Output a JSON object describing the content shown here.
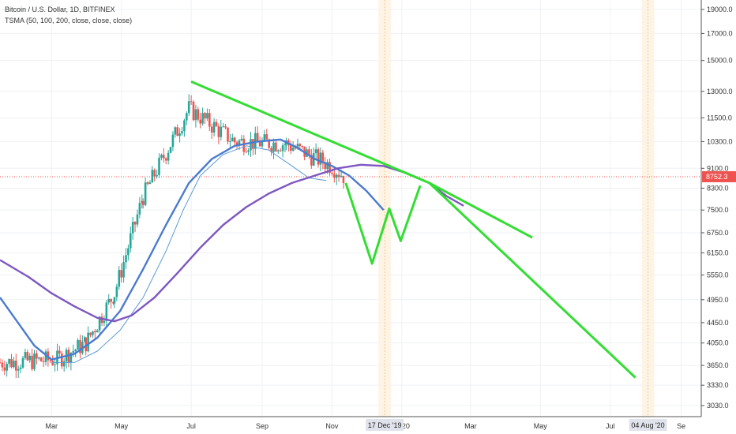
{
  "header": {
    "symbol_line": "Bitcoin / U.S. Dollar, 1D, BITFINEX",
    "indicator_line": "TSMA (50, 100, 200, close, close, close)"
  },
  "chart_data": {
    "type": "candlestick",
    "title": "Bitcoin / U.S. Dollar, 1D, BITFINEX",
    "indicator": "TSMA (50, 100, 200, close, close, close)",
    "y_scale": "log",
    "ylim": [
      2900,
      20000
    ],
    "price_ticks": [
      "19000.0",
      "17000.0",
      "15000.0",
      "13000.0",
      "11500.0",
      "10300.0",
      "9100.0",
      "8300.0",
      "7500.0",
      "6750.0",
      "6150.0",
      "5550.0",
      "4950.0",
      "4450.0",
      "4050.0",
      "3650.0",
      "3330.0",
      "3030.0"
    ],
    "current_price": "8752.3",
    "current_price_value": 8752.3,
    "x_ticks": [
      "Mar",
      "May",
      "Jul",
      "Sep",
      "Nov",
      "2020",
      "Mar",
      "May",
      "Jul",
      "Se"
    ],
    "x_tick_days": [
      0,
      61,
      122,
      184,
      245,
      306,
      366,
      427,
      488,
      550
    ],
    "highlight_labels": [
      {
        "label": "17 Dec '19",
        "day": 291
      },
      {
        "label": "04 Aug '20",
        "day": 521
      }
    ],
    "x_domain_days": [
      -45,
      562
    ],
    "candles_ohlc_by_segment": [
      {
        "from_day": -45,
        "to_day": 5,
        "open": 3700,
        "close": 3750,
        "high": 3850,
        "low": 3450
      },
      {
        "from_day": 5,
        "to_day": 30,
        "open": 3750,
        "close": 4050,
        "high": 4200,
        "low": 3700
      },
      {
        "from_day": 30,
        "to_day": 55,
        "open": 4050,
        "close": 5100,
        "high": 5300,
        "low": 4000
      },
      {
        "from_day": 55,
        "to_day": 80,
        "open": 5100,
        "close": 8000,
        "high": 8400,
        "low": 5000
      },
      {
        "from_day": 80,
        "to_day": 120,
        "open": 8000,
        "close": 12000,
        "high": 13800,
        "low": 7700
      },
      {
        "from_day": 120,
        "to_day": 160,
        "open": 12000,
        "close": 10300,
        "high": 12700,
        "low": 9300
      },
      {
        "from_day": 160,
        "to_day": 205,
        "open": 10300,
        "close": 10200,
        "high": 10900,
        "low": 9400
      },
      {
        "from_day": 205,
        "to_day": 245,
        "open": 10200,
        "close": 9200,
        "high": 10500,
        "low": 7400
      },
      {
        "from_day": 245,
        "to_day": 256,
        "open": 9200,
        "close": 8750,
        "high": 9700,
        "low": 8600
      }
    ],
    "series": [
      {
        "name": "TSMA 50",
        "color": "#4a7bd0",
        "points": [
          [
            -45,
            5000
          ],
          [
            -15,
            4000
          ],
          [
            0,
            3750
          ],
          [
            20,
            3850
          ],
          [
            40,
            4150
          ],
          [
            60,
            4700
          ],
          [
            80,
            5700
          ],
          [
            100,
            7000
          ],
          [
            120,
            8500
          ],
          [
            140,
            9500
          ],
          [
            160,
            10100
          ],
          [
            180,
            10300
          ],
          [
            200,
            10400
          ],
          [
            215,
            10000
          ],
          [
            230,
            9500
          ],
          [
            245,
            9200
          ],
          [
            260,
            8800
          ],
          [
            275,
            8200
          ],
          [
            290,
            7500
          ]
        ]
      },
      {
        "name": "TSMA 100",
        "color": "#5b9bd5",
        "points": [
          [
            0,
            3700
          ],
          [
            20,
            3700
          ],
          [
            40,
            3900
          ],
          [
            60,
            4300
          ],
          [
            80,
            5000
          ],
          [
            100,
            6200
          ],
          [
            115,
            7500
          ],
          [
            130,
            8800
          ],
          [
            150,
            9700
          ],
          [
            170,
            10100
          ],
          [
            190,
            9900
          ],
          [
            210,
            9200
          ],
          [
            225,
            8700
          ],
          [
            240,
            8600
          ]
        ]
      },
      {
        "name": "TSMA 200",
        "color": "#7e57c2",
        "points": [
          [
            -45,
            5950
          ],
          [
            -20,
            5500
          ],
          [
            0,
            5100
          ],
          [
            20,
            4800
          ],
          [
            40,
            4550
          ],
          [
            55,
            4480
          ],
          [
            70,
            4600
          ],
          [
            90,
            5000
          ],
          [
            110,
            5600
          ],
          [
            130,
            6300
          ],
          [
            150,
            7000
          ],
          [
            170,
            7600
          ],
          [
            190,
            8100
          ],
          [
            210,
            8500
          ],
          [
            230,
            8800
          ],
          [
            250,
            9100
          ],
          [
            270,
            9250
          ],
          [
            290,
            9200
          ],
          [
            310,
            8900
          ],
          [
            330,
            8500
          ],
          [
            345,
            8000
          ],
          [
            360,
            7650
          ]
        ]
      }
    ],
    "annotations": [
      {
        "type": "trendline",
        "color": "#33dd33",
        "points": [
          [
            122,
            13600
          ],
          [
            330,
            8500
          ],
          [
            420,
            6600
          ]
        ]
      },
      {
        "type": "trendline",
        "color": "#33dd33",
        "points": [
          [
            330,
            8500
          ],
          [
            510,
            3450
          ]
        ]
      },
      {
        "type": "path",
        "color": "#33dd33",
        "points": [
          [
            257,
            8500
          ],
          [
            280,
            5850
          ],
          [
            295,
            7550
          ],
          [
            305,
            6500
          ],
          [
            322,
            8400
          ]
        ]
      }
    ]
  }
}
